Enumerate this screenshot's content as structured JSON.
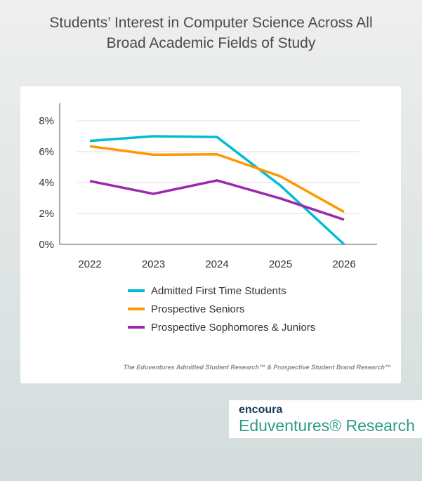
{
  "chart_data": {
    "type": "line",
    "title": "Students’ Interest in Computer Science Across All Broad Academic Fields of Study",
    "title_lines": [
      "Students’ Interest in Computer Science Across All",
      "Broad Academic Fields of Study"
    ],
    "x": [
      "2022",
      "2023",
      "2024",
      "2025",
      "2026"
    ],
    "ylim": [
      0,
      8
    ],
    "yticks": [
      "0%",
      "2%",
      "4%",
      "6%",
      "8%"
    ],
    "series": [
      {
        "name": "Admitted First Time Students",
        "color": "#00bcd4",
        "values": [
          6.7,
          7.0,
          6.95,
          3.8,
          0
        ]
      },
      {
        "name": "Prospective Seniors",
        "color": "#ff9800",
        "values": [
          6.35,
          5.8,
          5.83,
          4.4,
          2.1
        ]
      },
      {
        "name": "Prospective Sophomores & Juniors",
        "color": "#9c27b0",
        "values": [
          4.1,
          3.27,
          4.14,
          2.97,
          1.6
        ]
      }
    ],
    "grid": true,
    "legend": "bottom"
  },
  "source": "The Eduventures Admitted Student Research™ & Prospective Student Brand Research™",
  "logo": {
    "top": "encoura",
    "bottom": "Eduventures® Research"
  }
}
